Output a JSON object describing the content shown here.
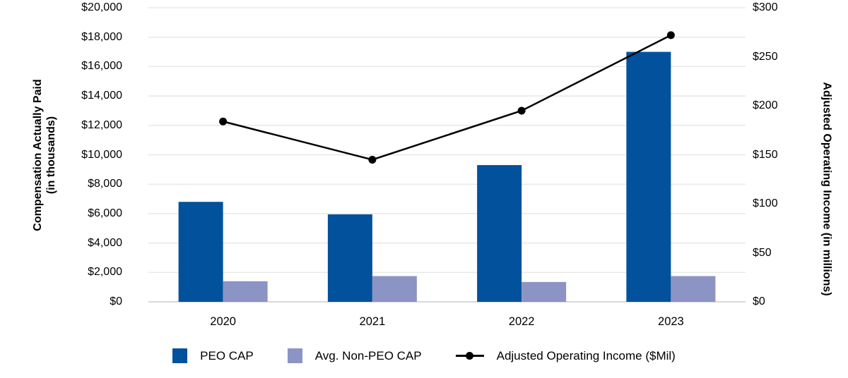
{
  "chart_data": {
    "type": "bar",
    "subtype": "grouped-bar-with-line-dual-axis",
    "title": "",
    "categories": [
      "2020",
      "2021",
      "2022",
      "2023"
    ],
    "series": [
      {
        "name": "PEO CAP",
        "type": "bar",
        "axis": "left",
        "color": "#02519c",
        "values": [
          6800,
          5950,
          9300,
          17000
        ]
      },
      {
        "name": "Avg. Non-PEO CAP",
        "type": "bar",
        "axis": "left",
        "color": "#8b94c4",
        "values": [
          1400,
          1750,
          1350,
          1750
        ]
      },
      {
        "name": "Adjusted Operating Income ($Mil)",
        "type": "line",
        "axis": "right",
        "color": "#000000",
        "marker": "circle",
        "values": [
          184,
          145,
          195,
          272
        ]
      }
    ],
    "left_axis": {
      "label_line1": "Compensation Actually Paid",
      "label_line2": "(in thousands)",
      "min": 0,
      "max": 20000,
      "step": 2000,
      "tick_values": [
        0,
        2000,
        4000,
        6000,
        8000,
        10000,
        12000,
        14000,
        16000,
        18000,
        20000
      ],
      "tick_labels": [
        "$0",
        "$2,000",
        "$4,000",
        "$6,000",
        "$8,000",
        "$10,000",
        "$12,000",
        "$14,000",
        "$16,000",
        "$18,000",
        "$20,000"
      ]
    },
    "right_axis": {
      "label": "Adjusted Operating Income (in millions)",
      "min": 0,
      "max": 300,
      "step": 50,
      "tick_values": [
        0,
        50,
        100,
        150,
        200,
        250,
        300
      ],
      "tick_labels": [
        "$0",
        "$50",
        "$100",
        "$150",
        "$200",
        "$250",
        "$300"
      ]
    },
    "grid": "horizontal",
    "gridline_color": "#e8e8e8",
    "baseline_color": "#d9d9d9",
    "legend_position": "bottom",
    "legend": [
      {
        "label": "PEO CAP",
        "marker": "square",
        "color": "#02519c"
      },
      {
        "label": "Avg. Non-PEO CAP",
        "marker": "square",
        "color": "#8b94c4"
      },
      {
        "label": "Adjusted Operating Income ($Mil)",
        "marker": "line-dot",
        "color": "#000000"
      }
    ]
  }
}
